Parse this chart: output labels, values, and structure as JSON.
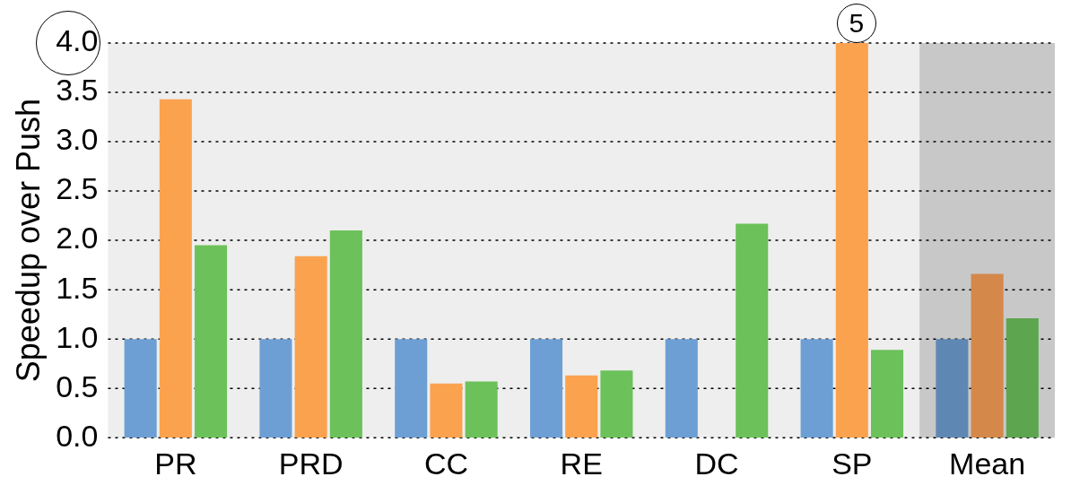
{
  "chart_data": {
    "type": "bar",
    "ylabel": "Speedup over Push",
    "categories": [
      "PR",
      "PRD",
      "CC",
      "RE",
      "DC",
      "SP",
      "Mean"
    ],
    "series": [
      {
        "color": "#6d9fd4",
        "colors": [
          null,
          null,
          null,
          null,
          null,
          null,
          "#5f87b4"
        ],
        "values": [
          1.0,
          1.0,
          1.0,
          1.0,
          1.0,
          1.0,
          1.0
        ]
      },
      {
        "color": "#fba24f",
        "colors": [
          null,
          null,
          null,
          null,
          null,
          null,
          "#d4884a"
        ],
        "values": [
          3.43,
          1.84,
          0.55,
          0.63,
          null,
          4.0,
          1.66
        ]
      },
      {
        "color": "#6cc15a",
        "colors": [
          null,
          null,
          null,
          null,
          null,
          null,
          "#5ea550"
        ],
        "values": [
          1.95,
          2.1,
          0.57,
          0.68,
          2.17,
          0.89,
          1.21
        ]
      }
    ],
    "ylim": [
      0,
      4.0
    ],
    "yticks": [
      {
        "value": 0,
        "label": "0.0"
      },
      {
        "value": 0.5,
        "label": "0.5"
      },
      {
        "value": 1,
        "label": "1.0"
      },
      {
        "value": 1.5,
        "label": "1.5"
      },
      {
        "value": 2,
        "label": "2.0"
      },
      {
        "value": 2.5,
        "label": "2.5"
      },
      {
        "value": 3,
        "label": "3.0"
      },
      {
        "value": 3.5,
        "label": "3.5"
      },
      {
        "value": 4,
        "label": "4.0"
      }
    ],
    "grid": "y",
    "legend": false,
    "bands": [
      {
        "axis": "x",
        "from": "Mean",
        "to": "Mean",
        "color": "#c8c8c8"
      }
    ],
    "annotations": [
      {
        "text": "5",
        "x": "SP",
        "y": 4.0
      }
    ]
  }
}
